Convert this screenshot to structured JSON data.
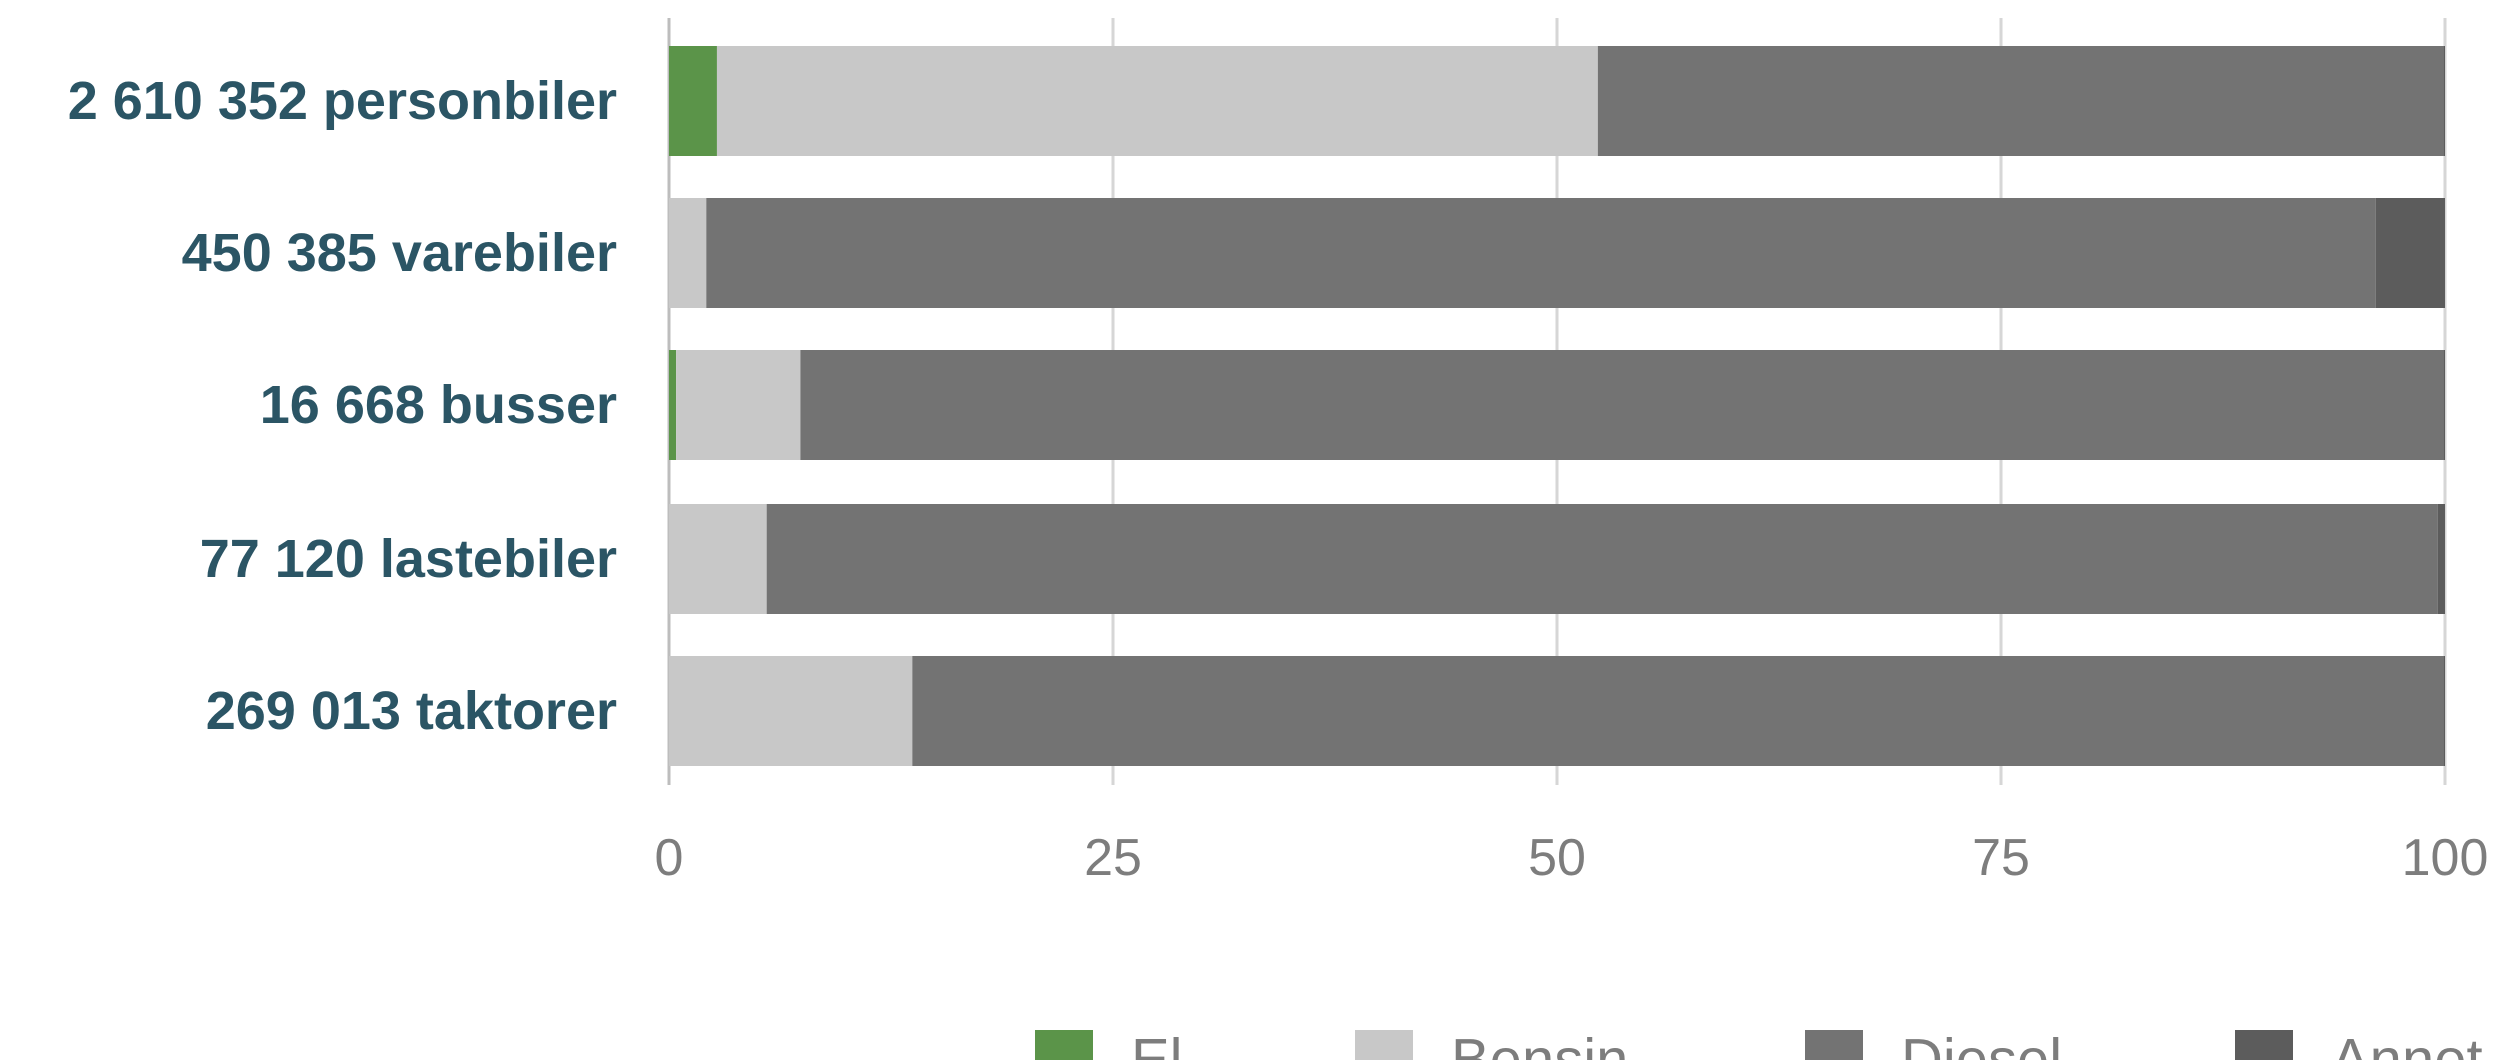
{
  "chart_data": {
    "type": "bar",
    "orientation": "horizontal",
    "stacked": true,
    "categories": [
      "2 610 352 personbiler",
      "450 385 varebiler",
      "16 668 busser",
      "77 120 lastebiler",
      "269 013 taktorer"
    ],
    "series": [
      {
        "name": "El",
        "color": "#5b9449",
        "values": [
          2.7,
          0,
          0.4,
          0,
          0
        ]
      },
      {
        "name": "Bensin",
        "color": "#c8c8c8",
        "values": [
          49.6,
          2.1,
          7.0,
          5.5,
          13.7
        ]
      },
      {
        "name": "Diesel",
        "color": "#737373",
        "values": [
          47.6,
          94.0,
          92.5,
          94.1,
          86.2
        ]
      },
      {
        "name": "Annet",
        "color": "#5c5c5c",
        "values": [
          0.1,
          3.9,
          0.1,
          0.4,
          0.1
        ]
      }
    ],
    "xlim": [
      0,
      100
    ],
    "xticks": [
      0,
      25,
      50,
      75,
      100
    ],
    "xtick_labels": [
      "0",
      "25",
      "50",
      "75",
      "100"
    ],
    "grid": "vertical",
    "legend_position": "bottom",
    "title": "",
    "xlabel": "",
    "ylabel": ""
  }
}
